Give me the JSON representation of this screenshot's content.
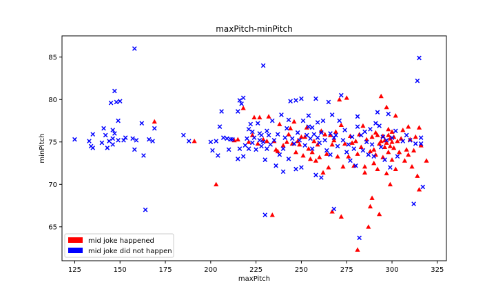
{
  "colors": {
    "red": "#ff0000",
    "blue": "#0000ff",
    "axis": "#000000"
  },
  "chart_data": {
    "type": "scatter",
    "title": "maxPitch-minPitch",
    "xlabel": "maxPitch",
    "ylabel": "minPitch",
    "xlim": [
      118,
      330
    ],
    "ylim": [
      61,
      87.5
    ],
    "xticks": [
      125,
      150,
      175,
      200,
      225,
      250,
      275,
      300,
      325
    ],
    "yticks": [
      65,
      70,
      75,
      80,
      85
    ],
    "grid": false,
    "legend_placement": "lower-left",
    "legend": [
      {
        "label": "mid joke happened",
        "color": "#ff0000"
      },
      {
        "label": "mid joke did not happen",
        "color": "#0000ff"
      }
    ],
    "series": [
      {
        "name": "mid joke happened",
        "marker": "triangle",
        "color": "#ff0000",
        "points": [
          [
            169,
            77.4
          ],
          [
            191,
            75.1
          ],
          [
            203,
            70
          ],
          [
            213,
            75.2
          ],
          [
            215,
            75.3
          ],
          [
            218,
            79
          ],
          [
            221,
            75
          ],
          [
            223,
            75.8
          ],
          [
            224,
            77.9
          ],
          [
            226,
            74.8
          ],
          [
            227,
            77.9
          ],
          [
            229,
            75.3
          ],
          [
            231,
            75.1
          ],
          [
            232,
            78
          ],
          [
            234,
            66.4
          ],
          [
            235,
            75.1
          ],
          [
            236,
            74.1
          ],
          [
            237,
            73.9
          ],
          [
            238,
            77.1
          ],
          [
            240,
            74.6
          ],
          [
            242,
            75
          ],
          [
            243,
            75.9
          ],
          [
            244,
            76.6
          ],
          [
            245,
            74.8
          ],
          [
            246,
            77.4
          ],
          [
            247,
            73.8
          ],
          [
            248,
            75.1
          ],
          [
            249,
            74.7
          ],
          [
            250,
            75.6
          ],
          [
            251,
            73.4
          ],
          [
            252,
            75.6
          ],
          [
            253,
            76.7
          ],
          [
            254,
            74.2
          ],
          [
            255,
            73
          ],
          [
            256,
            73.8
          ],
          [
            257,
            75.1
          ],
          [
            258,
            72.8
          ],
          [
            259,
            74.7
          ],
          [
            260,
            73.2
          ],
          [
            261,
            76.3
          ],
          [
            262,
            71.4
          ],
          [
            263,
            75.9
          ],
          [
            264,
            73.6
          ],
          [
            265,
            72
          ],
          [
            266,
            75.8
          ],
          [
            267,
            74.7
          ],
          [
            267,
            66.8
          ],
          [
            268,
            75.2
          ],
          [
            269,
            76.2
          ],
          [
            270,
            73.3
          ],
          [
            271,
            80
          ],
          [
            272,
            66.2
          ],
          [
            272,
            77
          ],
          [
            273,
            72.1
          ],
          [
            274,
            74.8
          ],
          [
            275,
            80.2
          ],
          [
            276,
            73.3
          ],
          [
            277,
            75.7
          ],
          [
            278,
            74.9
          ],
          [
            279,
            72.2
          ],
          [
            280,
            75.1
          ],
          [
            281,
            62.3
          ],
          [
            281,
            73.6
          ],
          [
            282,
            75.9
          ],
          [
            283,
            74.4
          ],
          [
            284,
            76.9
          ],
          [
            285,
            71.4
          ],
          [
            285,
            72.1
          ],
          [
            286,
            75.3
          ],
          [
            287,
            65
          ],
          [
            288,
            73.9
          ],
          [
            288,
            67.4
          ],
          [
            289,
            68.4
          ],
          [
            289,
            75.6
          ],
          [
            290,
            74.1
          ],
          [
            290,
            72.5
          ],
          [
            291,
            76.1
          ],
          [
            291,
            73.5
          ],
          [
            292,
            75.8
          ],
          [
            292,
            71.8
          ],
          [
            293,
            74.8
          ],
          [
            293,
            66.5
          ],
          [
            294,
            80.4
          ],
          [
            294,
            75.1
          ],
          [
            295,
            73.2
          ],
          [
            295,
            75.7
          ],
          [
            296,
            74.4
          ],
          [
            296,
            75.2
          ],
          [
            297,
            79.1
          ],
          [
            297,
            71.3
          ],
          [
            297,
            74.9
          ],
          [
            298,
            75.8
          ],
          [
            298,
            73.8
          ],
          [
            298,
            76.5
          ],
          [
            299,
            74.5
          ],
          [
            299,
            70
          ],
          [
            299,
            75.4
          ],
          [
            300,
            75
          ],
          [
            300,
            72.9
          ],
          [
            300,
            76.2
          ],
          [
            301,
            74.3
          ],
          [
            301,
            75.6
          ],
          [
            302,
            71.8
          ],
          [
            302,
            78.1
          ],
          [
            303,
            75.1
          ],
          [
            304,
            73.8
          ],
          [
            305,
            75.4
          ],
          [
            306,
            76.4
          ],
          [
            307,
            72.8
          ],
          [
            308,
            74.1
          ],
          [
            309,
            76.8
          ],
          [
            309,
            73.5
          ],
          [
            310,
            75.3
          ],
          [
            311,
            72.1
          ],
          [
            312,
            74
          ],
          [
            313,
            75.6
          ],
          [
            314,
            71
          ],
          [
            315,
            69.4
          ],
          [
            315,
            76.7
          ],
          [
            316,
            74.6
          ],
          [
            319,
            72.8
          ]
        ]
      },
      {
        "name": "mid joke did not happen",
        "marker": "x",
        "color": "#0000ff",
        "points": [
          [
            125,
            75.3
          ],
          [
            133,
            75.1
          ],
          [
            134,
            74.5
          ],
          [
            135,
            74.3
          ],
          [
            135,
            75.9
          ],
          [
            140,
            74.9
          ],
          [
            141,
            76.6
          ],
          [
            142,
            75.8
          ],
          [
            143,
            74.3
          ],
          [
            144,
            75.1
          ],
          [
            145,
            79.6
          ],
          [
            146,
            75.4
          ],
          [
            146,
            76.4
          ],
          [
            146,
            74.7
          ],
          [
            147,
            81
          ],
          [
            147,
            76
          ],
          [
            148,
            79.7
          ],
          [
            149,
            75.2
          ],
          [
            149,
            77.5
          ],
          [
            150,
            79.8
          ],
          [
            152,
            75.2
          ],
          [
            153,
            75.5
          ],
          [
            157,
            75.4
          ],
          [
            158,
            86
          ],
          [
            158,
            74.1
          ],
          [
            159,
            75.2
          ],
          [
            162,
            77.2
          ],
          [
            163,
            73.4
          ],
          [
            164,
            67
          ],
          [
            166,
            75.3
          ],
          [
            168,
            75.1
          ],
          [
            169,
            76.6
          ],
          [
            185,
            75.8
          ],
          [
            188,
            75.1
          ],
          [
            200,
            75
          ],
          [
            201,
            74
          ],
          [
            203,
            75.1
          ],
          [
            204,
            73.4
          ],
          [
            205,
            76.8
          ],
          [
            206,
            78.6
          ],
          [
            207,
            75.5
          ],
          [
            209,
            75.4
          ],
          [
            210,
            74.1
          ],
          [
            211,
            75.3
          ],
          [
            212,
            75.3
          ],
          [
            215,
            78.6
          ],
          [
            215,
            73
          ],
          [
            216,
            79.9
          ],
          [
            216,
            74.2
          ],
          [
            217,
            79.5
          ],
          [
            218,
            80.2
          ],
          [
            218,
            73.3
          ],
          [
            219,
            74.6
          ],
          [
            220,
            75.4
          ],
          [
            221,
            74.2
          ],
          [
            221,
            76.5
          ],
          [
            222,
            77.1
          ],
          [
            223,
            76.2
          ],
          [
            223,
            74.9
          ],
          [
            224,
            75.5
          ],
          [
            225,
            74.1
          ],
          [
            226,
            77.2
          ],
          [
            227,
            75.2
          ],
          [
            227,
            76
          ],
          [
            228,
            74.5
          ],
          [
            228,
            75.8
          ],
          [
            229,
            75
          ],
          [
            229,
            84
          ],
          [
            230,
            66.4
          ],
          [
            230,
            72.9
          ],
          [
            231,
            76.3
          ],
          [
            231,
            74.2
          ],
          [
            232,
            75.8
          ],
          [
            233,
            74.7
          ],
          [
            234,
            77.5
          ],
          [
            235,
            75.2
          ],
          [
            236,
            72.2
          ],
          [
            237,
            75.9
          ],
          [
            238,
            73.5
          ],
          [
            239,
            78.2
          ],
          [
            240,
            74.2
          ],
          [
            240,
            71.5
          ],
          [
            241,
            75.5
          ],
          [
            242,
            76.6
          ],
          [
            243,
            77.6
          ],
          [
            243,
            73
          ],
          [
            244,
            79.8
          ],
          [
            245,
            75.4
          ],
          [
            246,
            74.8
          ],
          [
            247,
            79.9
          ],
          [
            247,
            71.8
          ],
          [
            248,
            76.1
          ],
          [
            249,
            75.2
          ],
          [
            250,
            80.1
          ],
          [
            250,
            72
          ],
          [
            251,
            77.5
          ],
          [
            252,
            74.6
          ],
          [
            253,
            75.8
          ],
          [
            254,
            78.1
          ],
          [
            254,
            76.8
          ],
          [
            255,
            75.4
          ],
          [
            256,
            74.2
          ],
          [
            256,
            76.7
          ],
          [
            257,
            75.9
          ],
          [
            258,
            80.1
          ],
          [
            258,
            71.1
          ],
          [
            259,
            77.3
          ],
          [
            259,
            75.5
          ],
          [
            260,
            74.9
          ],
          [
            261,
            76.1
          ],
          [
            261,
            70.8
          ],
          [
            262,
            77.5
          ],
          [
            263,
            75.2
          ],
          [
            264,
            74
          ],
          [
            265,
            79.7
          ],
          [
            266,
            76
          ],
          [
            266,
            73.5
          ],
          [
            267,
            78.2
          ],
          [
            268,
            67.1
          ],
          [
            268,
            75.5
          ],
          [
            269,
            75.8
          ],
          [
            270,
            74.5
          ],
          [
            271,
            77.5
          ],
          [
            272,
            80.5
          ],
          [
            273,
            75.2
          ],
          [
            274,
            76.4
          ],
          [
            275,
            73.8
          ],
          [
            276,
            74.7
          ],
          [
            277,
            72.8
          ],
          [
            278,
            75.6
          ],
          [
            279,
            74.2
          ],
          [
            280,
            72.2
          ],
          [
            281,
            76.8
          ],
          [
            281,
            78
          ],
          [
            282,
            63.7
          ],
          [
            283,
            75.8
          ],
          [
            284,
            74
          ],
          [
            285,
            76.2
          ],
          [
            286,
            75
          ],
          [
            287,
            73.5
          ],
          [
            288,
            76.5
          ],
          [
            289,
            74.7
          ],
          [
            290,
            73.3
          ],
          [
            291,
            77.2
          ],
          [
            292,
            78.5
          ],
          [
            293,
            76.9
          ],
          [
            294,
            74.4
          ],
          [
            295,
            75.6
          ],
          [
            296,
            72.9
          ],
          [
            297,
            75.2
          ],
          [
            298,
            78.3
          ],
          [
            299,
            72
          ],
          [
            300,
            75.5
          ],
          [
            302,
            76.3
          ],
          [
            303,
            73.3
          ],
          [
            306,
            75.1
          ],
          [
            308,
            75.8
          ],
          [
            310,
            75.2
          ],
          [
            312,
            67.7
          ],
          [
            313,
            74.8
          ],
          [
            314,
            82.2
          ],
          [
            315,
            84.9
          ],
          [
            316,
            74.8
          ],
          [
            316,
            75.5
          ],
          [
            317,
            69.7
          ]
        ]
      }
    ]
  }
}
